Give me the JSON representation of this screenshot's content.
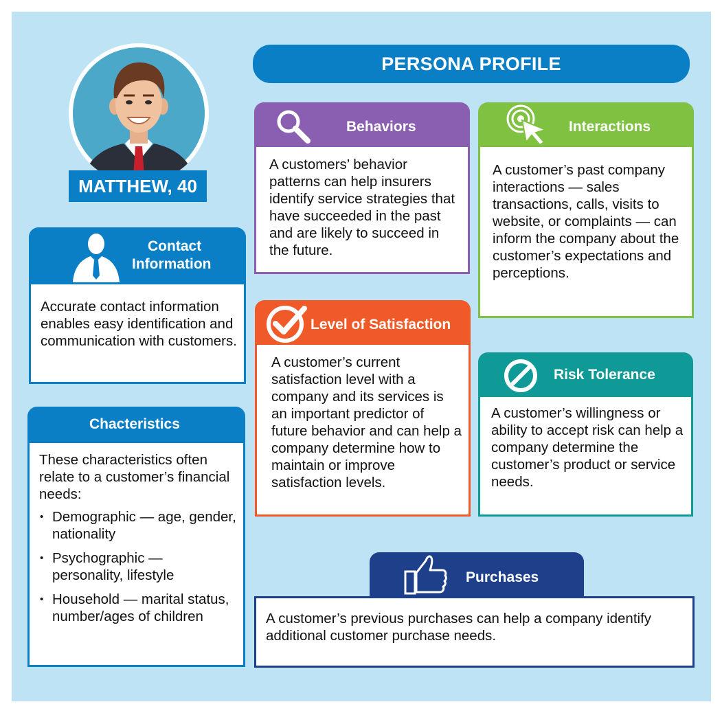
{
  "title": "PERSONA PROFILE",
  "persona": {
    "name": "MATTHEW, 40"
  },
  "colors": {
    "background": "#bde3f5",
    "blue": "#0b7fc6",
    "purple": "#8a5fb2",
    "green": "#7fc241",
    "orange": "#f05a28",
    "teal": "#0f9a98",
    "navy": "#1e3f8a"
  },
  "cards": {
    "contact": {
      "icon": "businessman-icon",
      "heading_line1": "Contact",
      "heading_line2": "Information",
      "body": "Accurate contact information enables easy identification and communication with customers."
    },
    "characteristics": {
      "heading": "Chacteristics",
      "intro": "These characteristics often relate to a customer’s financial needs:",
      "items": [
        "Demographic — age, gender, nationality",
        "Psychographic — personality, lifestyle",
        "Household — marital status, number/ages of children"
      ]
    },
    "behaviors": {
      "icon": "magnifier-icon",
      "heading": "Behaviors",
      "body": "A customers’ behavior patterns can help insurers identify service strategies that have succeeded in the past and are likely to succeed in the future."
    },
    "interactions": {
      "icon": "cursor-click-icon",
      "heading": "Interactions",
      "body": "A customer’s past company interactions — sales transactions, calls, visits to website, or complaints — can inform the company about the customer’s expectations and perceptions."
    },
    "satisfaction": {
      "icon": "checkmark-icon",
      "heading": "Level of Satisfaction",
      "body": "A customer’s current satisfaction level with a company and its services is an important predictor of future behavior and can help a company determine how to maintain or improve satisfaction levels."
    },
    "risk": {
      "icon": "prohibited-icon",
      "heading": "Risk Tolerance",
      "body": "A customer’s willingness or ability to accept risk can help a company determine the customer’s product or service needs."
    },
    "purchases": {
      "icon": "thumbs-up-icon",
      "heading": "Purchases",
      "body": "A customer’s previous purchases can help a company identify additional customer purchase needs."
    }
  }
}
